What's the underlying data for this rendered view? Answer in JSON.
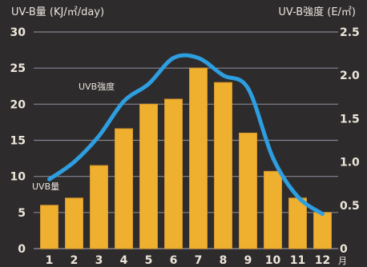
{
  "colors": {
    "background": "#2e2b2c",
    "bar": "#f0b02f",
    "bar_edge": "#d5962a",
    "line": "#2d9ee0",
    "grid": "#8d8f9c",
    "text": "#ece6da"
  },
  "chart_data": {
    "type": "bar",
    "categories": [
      "1",
      "2",
      "3",
      "4",
      "5",
      "6",
      "7",
      "8",
      "9",
      "10",
      "11",
      "12"
    ],
    "x_unit": "月",
    "series": [
      {
        "name": "UVB量",
        "type": "bar",
        "axis": "left",
        "values": [
          6,
          7,
          11.5,
          16.6,
          20,
          20.7,
          25,
          23,
          16,
          10.7,
          7,
          5
        ]
      },
      {
        "name": "UVB強度",
        "type": "line",
        "axis": "right",
        "values": [
          0.8,
          1.0,
          1.3,
          1.7,
          1.9,
          2.2,
          2.2,
          2.0,
          1.85,
          1.05,
          0.6,
          0.4
        ]
      }
    ],
    "ylabel_left": "UV-B量 (KJ/㎡/day)",
    "ylabel_right": "UV-B強度 (E/㎡)",
    "ylim_left": [
      0,
      30
    ],
    "ylim_right": [
      0,
      2.5
    ],
    "yticks_left": [
      "0",
      "5",
      "10",
      "15",
      "20",
      "25",
      "30"
    ],
    "yticks_right": [
      "0",
      "0.5",
      "1.0",
      "1.5",
      "2.0",
      "2.5"
    ],
    "grid": true
  }
}
